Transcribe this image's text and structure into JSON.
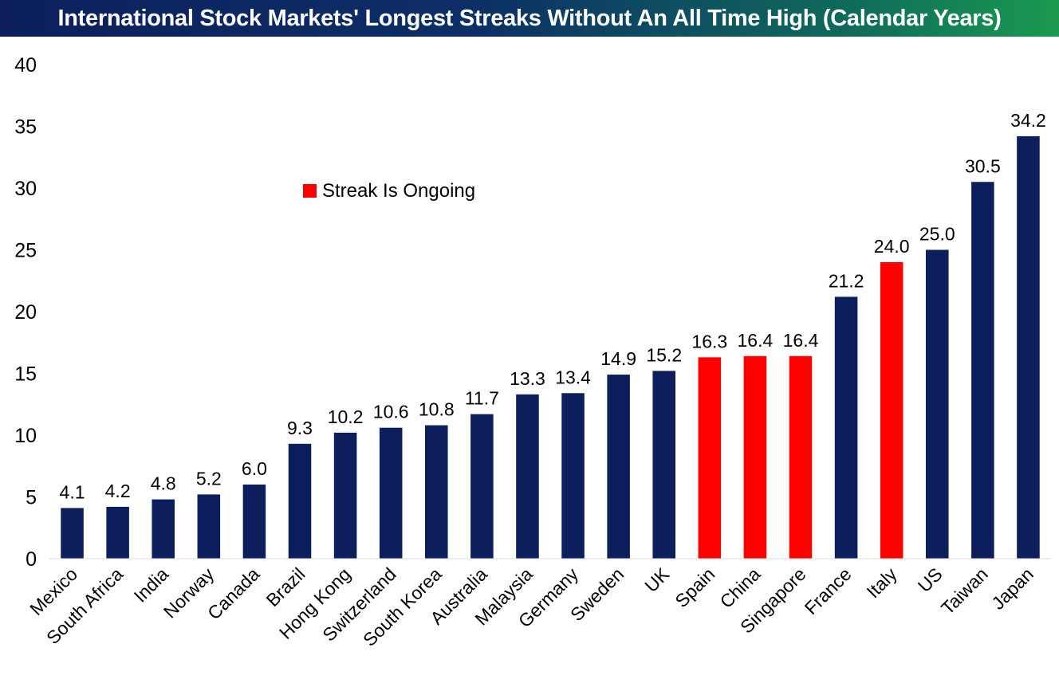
{
  "chart_data": {
    "type": "bar",
    "title": "International Stock Markets' Longest Streaks Without An All Time High (Calendar Years)",
    "xlabel": "",
    "ylabel": "",
    "ylim": [
      0,
      40
    ],
    "yticks": [
      "0",
      "5",
      "10",
      "15",
      "20",
      "25",
      "30",
      "35",
      "40"
    ],
    "grid": false,
    "legend": {
      "label": "Streak Is Ongoing",
      "color": "#ff0000",
      "placement": "upper-left-center"
    },
    "colors": {
      "completed": "#0c1f5c",
      "ongoing": "#ff0000"
    },
    "categories": [
      "Mexico",
      "South Africa",
      "India",
      "Norway",
      "Canada",
      "Brazil",
      "Hong Kong",
      "Switzerland",
      "South Korea",
      "Australia",
      "Malaysia",
      "Germany",
      "Sweden",
      "UK",
      "Spain",
      "China",
      "Singapore",
      "France",
      "Italy",
      "US",
      "Taiwan",
      "Japan"
    ],
    "values": [
      4.1,
      4.2,
      4.8,
      5.2,
      6.0,
      9.3,
      10.2,
      10.6,
      10.8,
      11.7,
      13.3,
      13.4,
      14.9,
      15.2,
      16.3,
      16.4,
      16.4,
      21.2,
      24.0,
      25.0,
      30.5,
      34.2
    ],
    "labels": [
      "4.1",
      "4.2",
      "4.8",
      "5.2",
      "6.0",
      "9.3",
      "10.2",
      "10.6",
      "10.8",
      "11.7",
      "13.3",
      "13.4",
      "14.9",
      "15.2",
      "16.3",
      "16.4",
      "16.4",
      "21.2",
      "24.0",
      "25.0",
      "30.5",
      "34.2"
    ],
    "ongoing": [
      false,
      false,
      false,
      false,
      false,
      false,
      false,
      false,
      false,
      false,
      false,
      false,
      false,
      false,
      true,
      true,
      true,
      false,
      true,
      false,
      false,
      false
    ]
  }
}
